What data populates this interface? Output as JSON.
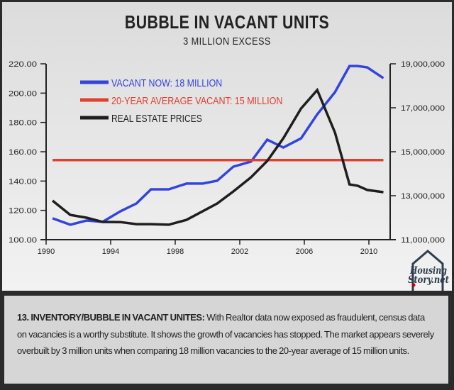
{
  "chart_data": {
    "type": "line",
    "title": "BUBBLE IN VACANT UNITS",
    "subtitle": "3 MILLION EXCESS",
    "xlim": [
      1990,
      2011.5
    ],
    "x_ticks": [
      "1990",
      "1994",
      "1998",
      "2002",
      "2006",
      "2010"
    ],
    "y_left": {
      "range": [
        100,
        220
      ],
      "ticks": [
        "100.00",
        "120.00",
        "140.00",
        "160.00",
        "180.00",
        "200.00",
        "220.00"
      ]
    },
    "y_right": {
      "range": [
        11000000,
        19000000
      ],
      "ticks": [
        "11,000,000",
        "13,000,000",
        "15,000,000",
        "17,000,000",
        "19,000,000"
      ]
    },
    "grid": false,
    "legend_placement": "top-left",
    "series": [
      {
        "name": "VACANT NOW: 18 MILLION",
        "axis": "right",
        "color": "#3344dd",
        "x": [
          1990.4,
          1991.5,
          1992.5,
          1993.5,
          1994.6,
          1995.6,
          1996.5,
          1997.6,
          1998.7,
          1999.7,
          2000.6,
          2001.6,
          2002.7,
          2003.7,
          2004.7,
          2005.8,
          2006.8,
          2007.9,
          2008.8,
          2009.3,
          2009.9,
          2010.9
        ],
        "values": [
          11970000,
          11680000,
          11870000,
          11810000,
          12290000,
          12650000,
          13290000,
          13290000,
          13550000,
          13550000,
          13680000,
          14320000,
          14550000,
          15550000,
          15190000,
          15610000,
          16700000,
          17710000,
          18900000,
          18900000,
          18840000,
          18350000
        ]
      },
      {
        "name": "20-YEAR AVERAGE VACANT: 15 MILLION",
        "axis": "left",
        "color": "#e04030",
        "x": [
          1990.4,
          2010.9
        ],
        "values": [
          154.3,
          154.3
        ]
      },
      {
        "name": "REAL ESTATE PRICES",
        "axis": "left",
        "color": "#1e1e1e",
        "x": [
          1990.4,
          1991.5,
          1992.5,
          1993.5,
          1994.6,
          1995.6,
          1996.5,
          1997.6,
          1998.7,
          1999.7,
          2000.6,
          2001.6,
          2002.7,
          2003.7,
          2004.7,
          2005.8,
          2006.8,
          2007.9,
          2008.8,
          2009.3,
          2009.9,
          2010.9
        ],
        "values": [
          126.6,
          116.9,
          115.0,
          112.1,
          112.0,
          110.6,
          110.6,
          110.2,
          113.5,
          119.4,
          124.7,
          132.9,
          142.6,
          153.7,
          169.2,
          189.5,
          202.1,
          173.1,
          137.7,
          136.8,
          133.9,
          132.4
        ]
      }
    ]
  },
  "logo": {
    "line1": "Housing",
    "line2": "Story.net"
  },
  "caption": {
    "heading": "13. INVENTORY/BUBBLE IN VACANT UNITES:",
    "body": " With Realtor data now exposed as fraudulent, census data on vacancies is a worthy substitute. It shows the growth of vacancies has stopped. The market appears severely overbuilt by 3 million units when comparing 18 million vacancies to the 20-year average of 15 million units."
  }
}
